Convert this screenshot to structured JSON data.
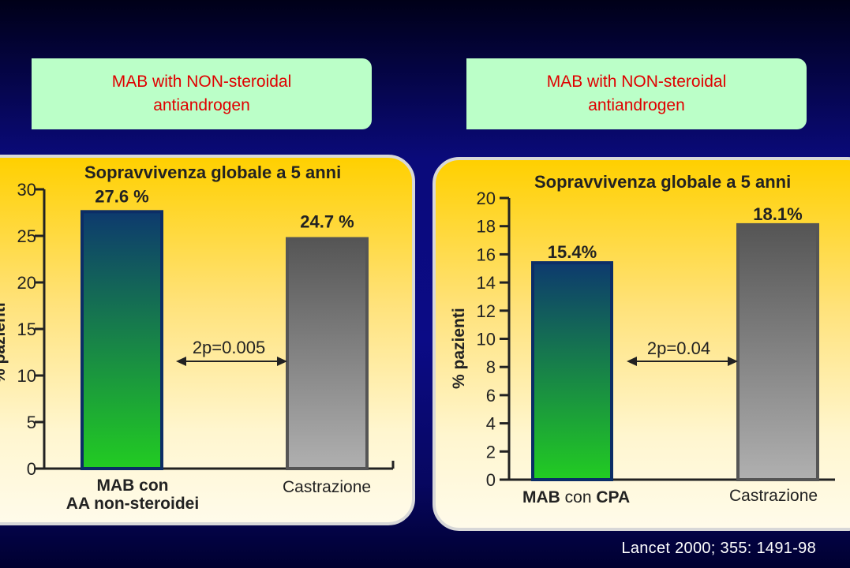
{
  "headers": [
    {
      "line1": "MAB with NON-steroidal",
      "line2": "antiandrogen"
    },
    {
      "line1": "MAB with NON-steroidal",
      "line2": "antiandrogen"
    }
  ],
  "citation": "Lancet 2000; 355: 1491-98",
  "colors": {
    "accent": "#e00000",
    "header_bg": "#bbffc8",
    "bar1_top": "#0d3a6e",
    "bar1_bottom": "#22cc22",
    "bar2_top": "#555555",
    "bar2_bottom": "#b0b0b0"
  },
  "chart_data": [
    {
      "type": "bar",
      "title": "Sopravvivenza globale a 5 anni",
      "ylabel": "% pazienti",
      "ylim": [
        0,
        30
      ],
      "yticks": [
        0,
        5,
        10,
        15,
        20,
        25,
        30
      ],
      "categories": [
        {
          "bold": "MAB con",
          "line2_bold": "AA non-steroidei"
        },
        {
          "plain": "Castrazione"
        }
      ],
      "values": [
        27.6,
        24.7
      ],
      "value_labels": [
        "27.6 %",
        "24.7 %"
      ],
      "annotation": "2p=0.005"
    },
    {
      "type": "bar",
      "title": "Sopravvivenza globale a 5 anni",
      "ylabel": "% pazienti",
      "ylim": [
        0,
        20
      ],
      "yticks": [
        0,
        2,
        4,
        6,
        8,
        10,
        12,
        14,
        16,
        18,
        20
      ],
      "categories": [
        {
          "bold": "MAB",
          "plain": " con ",
          "bold2": "CPA"
        },
        {
          "plain": "Castrazione"
        }
      ],
      "values": [
        15.4,
        18.1
      ],
      "value_labels": [
        "15.4%",
        "18.1%"
      ],
      "annotation": "2p=0.04"
    }
  ]
}
